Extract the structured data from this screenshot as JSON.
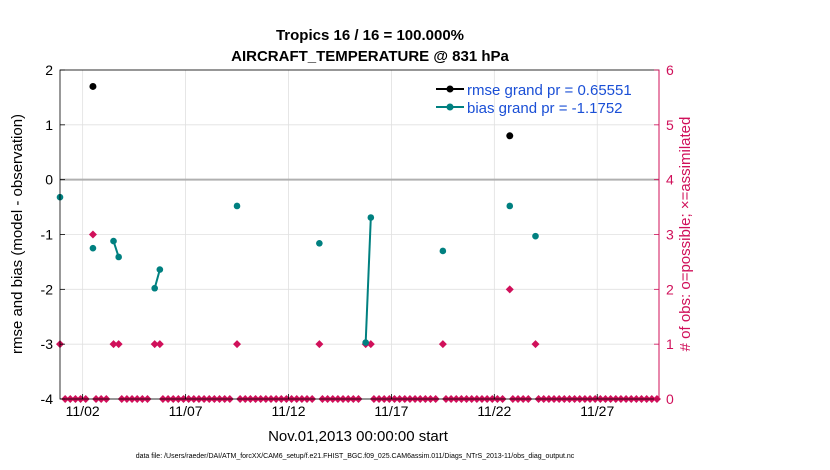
{
  "chart_data": {
    "type": "scatter",
    "title_line1": "Tropics 16 / 16 = 100.000%",
    "title_line2": "AIRCRAFT_TEMPERATURE @ 831 hPa",
    "ylabel": "rmse and bias (model - observation)",
    "ylabel_right": "# of obs: o=possible; ×=assimilated",
    "xlabel": "Nov.01,2013 00:00:00 start",
    "footer": "data file: /Users/raeder/DAI/ATM_forcXX/CAM6_setup/f.e21.FHIST_BGC.f09_025.CAM6assim.011/Diags_NTrS_2013-11/obs_diag_output.nc",
    "xlim": [
      0.9,
      30.0
    ],
    "ylim": [
      -4,
      2
    ],
    "ylim_right": [
      0,
      6
    ],
    "x_ticks": [
      2,
      7,
      12,
      17,
      22,
      27
    ],
    "x_tick_labels": [
      "11/02",
      "11/07",
      "11/12",
      "11/17",
      "11/22",
      "11/27"
    ],
    "y_ticks": [
      2,
      1,
      0,
      -1,
      -2,
      -3,
      -4
    ],
    "y_tick_labels": [
      "2",
      "1",
      "0",
      "-1",
      "-2",
      "-3",
      "-4"
    ],
    "y_ticks_right": [
      6,
      5,
      4,
      3,
      2,
      1,
      0
    ],
    "y_tick_labels_right": [
      "6",
      "5",
      "4",
      "3",
      "2",
      "1",
      "0"
    ],
    "zero_line": 0,
    "colors": {
      "rmse": "#000000",
      "bias": "#008080",
      "count": "#d0105a",
      "zero_line": "#b0b0b0",
      "grid": "#e0e0e0"
    },
    "series": [
      {
        "name": "rmse",
        "legend": "rmse grand pr = 0.65551",
        "values": [
          [
            2.5,
            1.7
          ],
          [
            22.75,
            0.8
          ]
        ]
      },
      {
        "name": "bias",
        "legend": "bias grand pr = -1.1752",
        "values": [
          [
            0.9,
            -0.32
          ],
          [
            2.5,
            -1.25
          ],
          [
            3.5,
            -1.12
          ],
          [
            3.75,
            -1.41
          ],
          [
            5.5,
            -1.98
          ],
          [
            5.75,
            -1.64
          ],
          [
            9.5,
            -0.48
          ],
          [
            13.5,
            -1.16
          ],
          [
            15.75,
            -2.97
          ],
          [
            16.0,
            -0.69
          ],
          [
            19.5,
            -1.3
          ],
          [
            22.75,
            -0.48
          ],
          [
            24.0,
            -1.03
          ]
        ],
        "segments": [
          [
            [
              3.5,
              -1.12
            ],
            [
              3.75,
              -1.41
            ]
          ],
          [
            [
              5.5,
              -1.98
            ],
            [
              5.75,
              -1.64
            ]
          ],
          [
            [
              15.75,
              -2.97
            ],
            [
              16.0,
              -0.69
            ]
          ]
        ]
      }
    ],
    "obs_count": {
      "nonzero": [
        [
          0.9,
          1
        ],
        [
          2.5,
          3
        ],
        [
          3.5,
          1
        ],
        [
          3.75,
          1
        ],
        [
          5.5,
          1
        ],
        [
          5.75,
          1
        ],
        [
          9.5,
          1
        ],
        [
          13.5,
          1
        ],
        [
          15.75,
          1
        ],
        [
          16.0,
          1
        ],
        [
          19.5,
          1
        ],
        [
          22.75,
          2
        ],
        [
          24.0,
          1
        ]
      ],
      "zero_step": 0.25
    }
  }
}
